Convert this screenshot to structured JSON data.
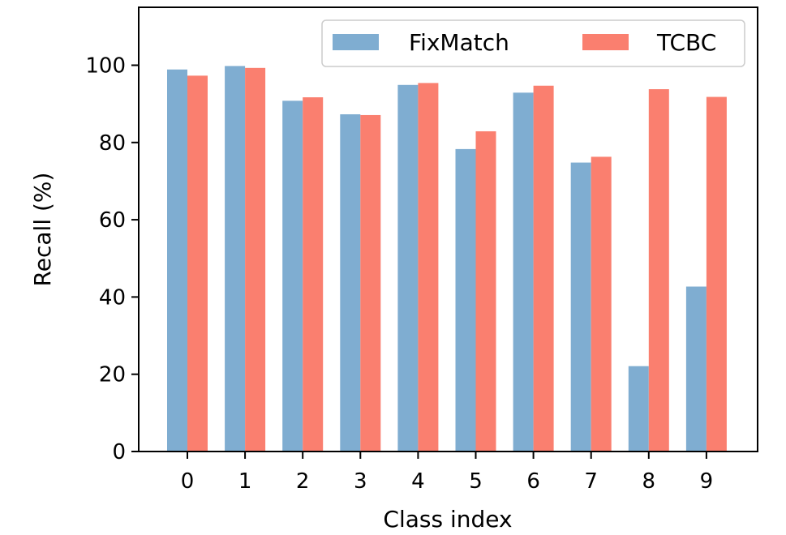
{
  "chart_data": {
    "type": "bar",
    "xlabel": "Class index",
    "ylabel": "Recall (%)",
    "categories": [
      "0",
      "1",
      "2",
      "3",
      "4",
      "5",
      "6",
      "7",
      "8",
      "9"
    ],
    "ylim": [
      0,
      115
    ],
    "yticks": [
      0,
      20,
      40,
      60,
      80,
      100
    ],
    "grid": false,
    "legend_position": "top-right",
    "series": [
      {
        "name": "FixMatch",
        "color": "#7fadd1",
        "values": [
          98.9,
          99.8,
          90.8,
          87.3,
          94.9,
          78.3,
          92.9,
          74.8,
          22.1,
          42.7
        ]
      },
      {
        "name": "TCBC",
        "color": "#fa7f6f",
        "values": [
          97.3,
          99.3,
          91.7,
          87.1,
          95.4,
          82.9,
          94.7,
          76.3,
          93.8,
          91.8
        ]
      }
    ]
  }
}
